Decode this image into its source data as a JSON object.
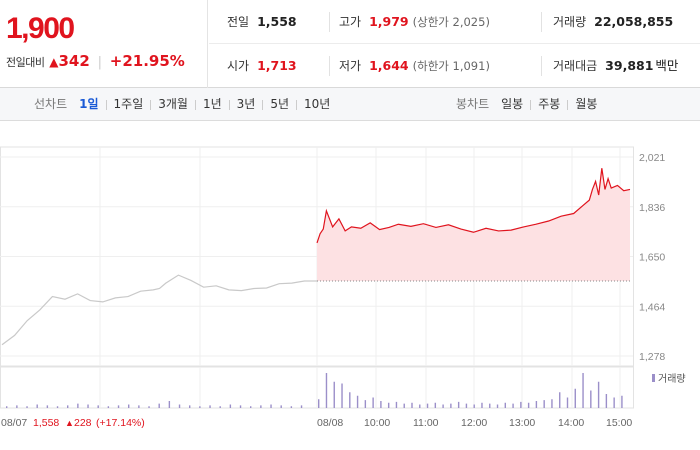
{
  "summary": {
    "price": "1,900",
    "change_label": "전일대비",
    "change_arrow": "▲",
    "change_value": "342",
    "change_pct": "+21.95%"
  },
  "stats": {
    "prev_close": {
      "label": "전일",
      "value": "1,558"
    },
    "high": {
      "label": "고가",
      "value": "1,979",
      "limit_text": "(상한가 2,025)"
    },
    "volume": {
      "label": "거래량",
      "value": "22,058,855"
    },
    "open": {
      "label": "시가",
      "value": "1,713"
    },
    "low": {
      "label": "저가",
      "value": "1,644",
      "limit_text": "(하한가 1,091)"
    },
    "amount": {
      "label": "거래대금",
      "value": "39,881",
      "unit": "백만"
    }
  },
  "toolbar": {
    "line_label": "선차트",
    "line_periods": [
      {
        "label": "1일",
        "active": true
      },
      {
        "label": "1주일",
        "active": false
      },
      {
        "label": "3개월",
        "active": false
      },
      {
        "label": "1년",
        "active": false
      },
      {
        "label": "3년",
        "active": false
      },
      {
        "label": "5년",
        "active": false
      },
      {
        "label": "10년",
        "active": false
      }
    ],
    "candle_label": "봉차트",
    "candle_periods": [
      {
        "label": "일봉"
      },
      {
        "label": "주봉"
      },
      {
        "label": "월봉"
      }
    ]
  },
  "colors": {
    "up": "#e0141e",
    "prev_line": "#c9c9c9",
    "fill": "#fde1e3",
    "volume": "#9b8fc9"
  },
  "chart_data": {
    "type": "line",
    "y_ticks": [
      "2,021",
      "1,836",
      "1,650",
      "1,464",
      "1,278"
    ],
    "ylim": [
      1278,
      2021
    ],
    "prev_close_ref": 1558,
    "volume_legend": "거래량",
    "x_labels": [
      "08/07",
      "08/08",
      "10:00",
      "11:00",
      "12:00",
      "13:00",
      "14:00",
      "15:00"
    ],
    "prev_day_caption": {
      "price": "1,558",
      "arrow": "▲",
      "change": "228",
      "pct": "(+17.14%)"
    },
    "grid": true,
    "series": [
      {
        "x": [
          0,
          0.04,
          0.08,
          0.12,
          0.16,
          0.2,
          0.24,
          0.28,
          0.32,
          0.36,
          0.4,
          0.44,
          0.48,
          0.5,
          0.52,
          0.56,
          0.6,
          0.64,
          0.68,
          0.72,
          0.76,
          0.8,
          0.84,
          0.88,
          0.92,
          0.96,
          1
        ],
        "y": [
          1320,
          1355,
          1410,
          1450,
          1500,
          1490,
          1510,
          1485,
          1480,
          1495,
          1500,
          1520,
          1525,
          1530,
          1550,
          1580,
          1560,
          1535,
          1540,
          1525,
          1522,
          1530,
          1532,
          1548,
          1550,
          1558,
          1558
        ]
      },
      {
        "x": [
          0,
          0.01,
          0.02,
          0.03,
          0.05,
          0.07,
          0.09,
          0.11,
          0.14,
          0.17,
          0.2,
          0.23,
          0.26,
          0.3,
          0.34,
          0.38,
          0.42,
          0.46,
          0.5,
          0.54,
          0.58,
          0.62,
          0.66,
          0.7,
          0.74,
          0.78,
          0.82,
          0.85,
          0.87,
          0.88,
          0.89,
          0.9,
          0.91,
          0.92,
          0.93,
          0.94,
          0.96,
          0.98,
          1
        ],
        "y": [
          1700,
          1735,
          1752,
          1820,
          1760,
          1790,
          1745,
          1760,
          1755,
          1775,
          1750,
          1758,
          1770,
          1762,
          1772,
          1758,
          1768,
          1752,
          1740,
          1755,
          1745,
          1748,
          1760,
          1770,
          1782,
          1800,
          1810,
          1840,
          1860,
          1900,
          1930,
          1879,
          1979,
          1900,
          1940,
          1905,
          1915,
          1895,
          1900
        ]
      }
    ],
    "volume": {
      "prev_day": [
        2,
        3,
        2,
        4,
        3,
        2,
        3,
        5,
        4,
        3,
        2,
        3,
        4,
        3,
        2,
        5,
        8,
        4,
        3,
        2,
        3,
        2,
        4,
        3,
        2,
        3,
        4,
        3,
        2,
        3
      ],
      "today": [
        10,
        40,
        30,
        28,
        18,
        14,
        9,
        12,
        8,
        6,
        7,
        5,
        6,
        4,
        5,
        6,
        4,
        5,
        7,
        5,
        4,
        6,
        5,
        4,
        6,
        5,
        7,
        6,
        8,
        9,
        10,
        18,
        12,
        22,
        40,
        20,
        30,
        16,
        12,
        14
      ]
    }
  }
}
